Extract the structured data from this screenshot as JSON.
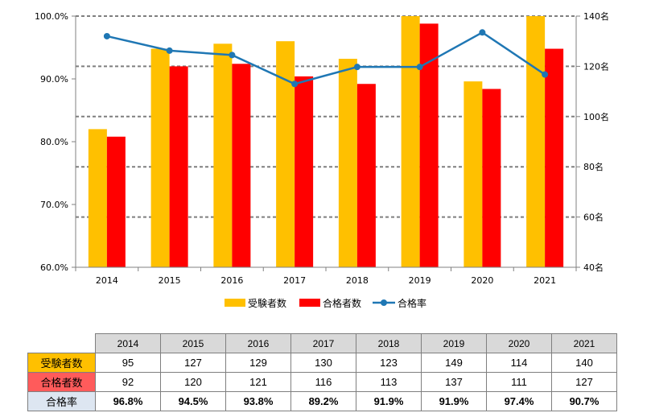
{
  "chart_data": {
    "type": "bar",
    "categories": [
      "2014",
      "2015",
      "2016",
      "2017",
      "2018",
      "2019",
      "2020",
      "2021"
    ],
    "series": [
      {
        "name": "受験者数",
        "kind": "bar",
        "axis": "right",
        "color": "#ffc000",
        "values": [
          95,
          127,
          129,
          130,
          123,
          149,
          114,
          140
        ]
      },
      {
        "name": "合格者数",
        "kind": "bar",
        "axis": "right",
        "color": "#ff0000",
        "values": [
          92,
          120,
          121,
          116,
          113,
          137,
          111,
          127
        ]
      },
      {
        "name": "合格率",
        "kind": "line",
        "axis": "left",
        "color": "#1f77b4",
        "values": [
          96.8,
          94.5,
          93.8,
          89.2,
          91.9,
          91.9,
          97.4,
          90.7
        ]
      }
    ],
    "left_axis": {
      "ylim": [
        60,
        100
      ],
      "ticks": [
        "60.0%",
        "70.0%",
        "80.0%",
        "90.0%",
        "100.0%"
      ],
      "tick_values": [
        60,
        70,
        80,
        90,
        100
      ]
    },
    "right_axis": {
      "ylim": [
        40,
        140
      ],
      "ticks": [
        "40名",
        "60名",
        "80名",
        "100名",
        "120名",
        "140名"
      ],
      "tick_values": [
        40,
        60,
        80,
        100,
        120,
        140
      ]
    },
    "legend_position": "bottom"
  },
  "table": {
    "headers": [
      "2014",
      "2015",
      "2016",
      "2017",
      "2018",
      "2019",
      "2020",
      "2021"
    ],
    "rows": [
      {
        "label": "受験者数",
        "values": [
          "95",
          "127",
          "129",
          "130",
          "123",
          "149",
          "114",
          "140"
        ]
      },
      {
        "label": "合格者数",
        "values": [
          "92",
          "120",
          "121",
          "116",
          "113",
          "137",
          "111",
          "127"
        ]
      },
      {
        "label": "合格率",
        "values": [
          "96.8%",
          "94.5%",
          "93.8%",
          "89.2%",
          "91.9%",
          "91.9%",
          "97.4%",
          "90.7%"
        ]
      }
    ]
  }
}
